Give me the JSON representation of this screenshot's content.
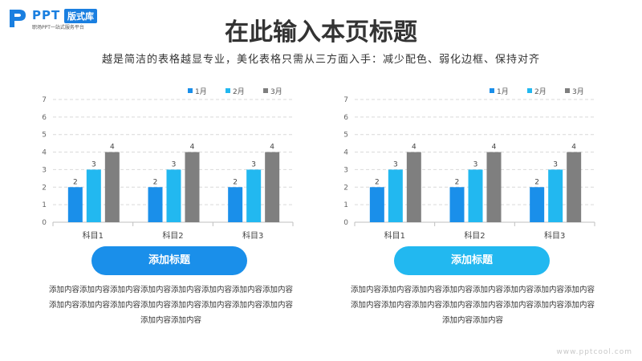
{
  "logo": {
    "text": "PPT",
    "badge": "版式库",
    "tagline": "职场PPT一站式服务平台"
  },
  "header": {
    "title": "在此输入本页标题",
    "subtitle": "越是简洁的表格越显专业，美化表格只需从三方面入手：减少配色、弱化边框、保持对齐"
  },
  "colors": {
    "series1": "#1a8fea",
    "series2": "#22b8f0",
    "series3": "#7f7f7f",
    "pill_left": "#1a8fea",
    "pill_right": "#22b8f0"
  },
  "chart_data": [
    {
      "type": "bar",
      "categories": [
        "科目1",
        "科目2",
        "科目3"
      ],
      "series": [
        {
          "name": "1月",
          "values": [
            2,
            2,
            2
          ]
        },
        {
          "name": "2月",
          "values": [
            3,
            3,
            3
          ]
        },
        {
          "name": "3月",
          "values": [
            4,
            4,
            4
          ]
        }
      ],
      "title": "",
      "xlabel": "",
      "ylabel": "",
      "ylim": [
        0,
        7
      ],
      "yticks": [
        0,
        1,
        2,
        3,
        4,
        5,
        6,
        7
      ],
      "grid": true,
      "legend": "top-right",
      "data_labels": true
    },
    {
      "type": "bar",
      "categories": [
        "科目1",
        "科目2",
        "科目3"
      ],
      "series": [
        {
          "name": "1月",
          "values": [
            2,
            2,
            2
          ]
        },
        {
          "name": "2月",
          "values": [
            3,
            3,
            3
          ]
        },
        {
          "name": "3月",
          "values": [
            4,
            4,
            4
          ]
        }
      ],
      "title": "",
      "xlabel": "",
      "ylabel": "",
      "ylim": [
        0,
        7
      ],
      "yticks": [
        0,
        1,
        2,
        3,
        4,
        5,
        6,
        7
      ],
      "grid": true,
      "legend": "top-right",
      "data_labels": true
    }
  ],
  "sections": [
    {
      "button_label": "添加标题",
      "body": "添加内容添加内容添加内容添加内容添加内容添加内容添加内容添加内容添加内容添加内容添加内容添加内容添加内容添加内容添加内容添加内容添加内容添加内容"
    },
    {
      "button_label": "添加标题",
      "body": "添加内容添加内容添加内容添加内容添加内容添加内容添加内容添加内容添加内容添加内容添加内容添加内容添加内容添加内容添加内容添加内容添加内容添加内容"
    }
  ],
  "watermark": "www.pptcool.com"
}
